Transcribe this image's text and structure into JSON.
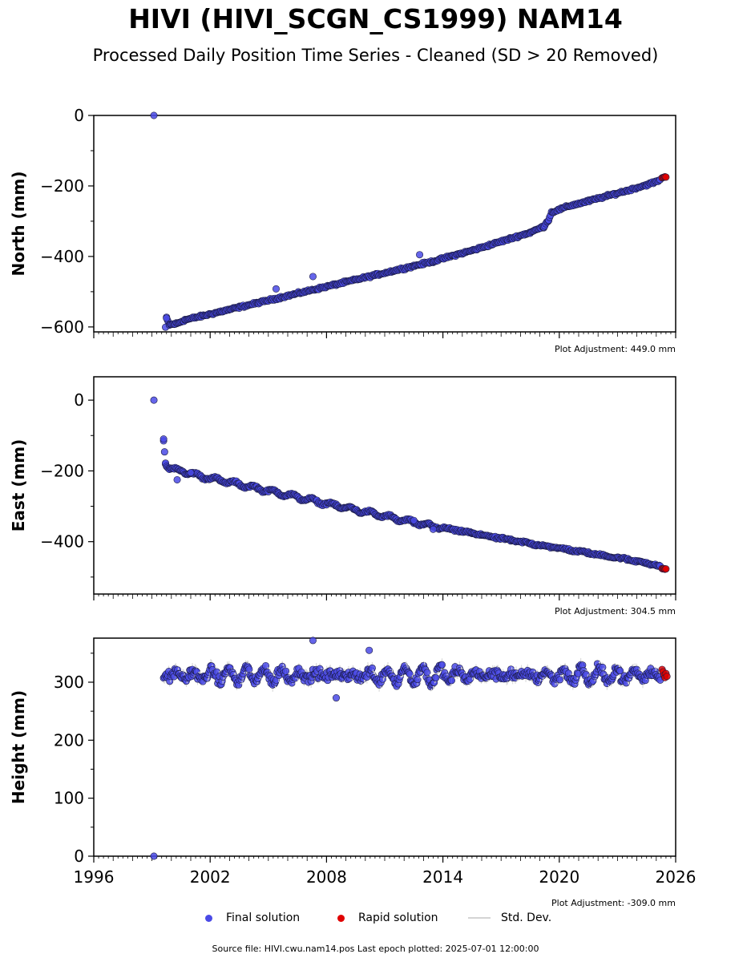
{
  "figure": {
    "title": "HIVI (HIVI_SCGN_CS1999) NAM14",
    "subtitle": "Processed Daily Position Time Series - Cleaned (SD > 20 Removed)",
    "footer": "Source file: HIVI.cwu.nam14.pos  Last epoch plotted: 2025-07-01 12:00:00"
  },
  "legend": {
    "final_label": "Final solution",
    "rapid_label": "Rapid solution",
    "std_label": "Std. Dev.",
    "final_color": "#4a4ae6",
    "rapid_color": "#e00000",
    "std_color": "#d4d4d4"
  },
  "chart_data": [
    {
      "type": "scatter",
      "ylabel": "North (mm)",
      "xlim": [
        1996,
        2026
      ],
      "ylim": [
        -614,
        0
      ],
      "yticks": [
        0,
        -200,
        -400,
        -600
      ],
      "xticks": [
        1996,
        2002,
        2008,
        2014,
        2020,
        2026
      ],
      "show_xticklabels": false,
      "adjustment_label": "Plot Adjustment: 449.0 mm",
      "series": [
        {
          "role": "final",
          "x": [
            1999.1,
            1999.7,
            1999.75,
            1999.9,
            2000.3,
            2000.7,
            2001.5,
            2002.5,
            2003.5,
            2004.5,
            2005.5,
            2006.5,
            2007.5,
            2008.5,
            2009.5,
            2010.5,
            2011.5,
            2012.5,
            2013.5,
            2014.5,
            2015.5,
            2016.5,
            2017.5,
            2018.5,
            2019.2,
            2019.45,
            2019.6,
            2020.5,
            2021.5,
            2022.5,
            2023.5,
            2024.5,
            2025.2
          ],
          "y": [
            0,
            -601,
            -575,
            -594,
            -590,
            -580,
            -570,
            -557,
            -544,
            -531,
            -518,
            -505,
            -492,
            -479,
            -466,
            -453,
            -440,
            -427,
            -414,
            -398,
            -383,
            -366,
            -349,
            -332,
            -315,
            -296,
            -275,
            -257,
            -243,
            -228,
            -213,
            -197,
            -184
          ],
          "outliers_x": [
            1999.75,
            2005.4,
            2007.3,
            2012.8
          ],
          "outliers_y": [
            -575,
            -492,
            -457,
            -395
          ]
        },
        {
          "role": "rapid",
          "x": [
            2025.3,
            2025.35,
            2025.4,
            2025.45,
            2025.5
          ],
          "y": [
            -177,
            -176,
            -175,
            -174,
            -175
          ]
        }
      ]
    },
    {
      "type": "scatter",
      "ylabel": "East (mm)",
      "xlim": [
        1996,
        2026
      ],
      "ylim": [
        -548,
        66
      ],
      "yticks": [
        0,
        -200,
        -400
      ],
      "xticks": [
        1996,
        2002,
        2008,
        2014,
        2020,
        2026
      ],
      "show_xticklabels": false,
      "adjustment_label": "Plot Adjustment: 304.5 mm",
      "series": [
        {
          "role": "final",
          "x": [
            1999.1,
            1999.6,
            1999.7,
            1999.9,
            2000.5,
            2001.5,
            2002.5,
            2003.5,
            2004.5,
            2005.5,
            2006.5,
            2007.5,
            2008.5,
            2009.5,
            2010.5,
            2011.5,
            2012.5,
            2013.5,
            2014.5,
            2015.5,
            2016.5,
            2017.5,
            2018.5,
            2019.5,
            2020.5,
            2021.5,
            2022.5,
            2023.5,
            2024.5,
            2025.2
          ],
          "y": [
            0,
            -110,
            -176,
            -192,
            -200,
            -215,
            -226,
            -238,
            -250,
            -262,
            -274,
            -286,
            -298,
            -310,
            -322,
            -334,
            -346,
            -356,
            -366,
            -376,
            -386,
            -396,
            -405,
            -414,
            -423,
            -432,
            -441,
            -450,
            -460,
            -470
          ],
          "outliers_x": [
            1999.6,
            2000.3,
            2001.0,
            2012.5,
            2013.5
          ],
          "outliers_y": [
            -110,
            -225,
            -205,
            -340,
            -365
          ]
        },
        {
          "role": "rapid",
          "x": [
            2025.3,
            2025.35,
            2025.4,
            2025.45,
            2025.5
          ],
          "y": [
            -476,
            -477,
            -476,
            -478,
            -477
          ]
        }
      ]
    },
    {
      "type": "scatter",
      "ylabel": "Height (mm)",
      "xlim": [
        1996,
        2026
      ],
      "ylim": [
        0,
        376
      ],
      "yticks": [
        0,
        100,
        200,
        300
      ],
      "xticks": [
        1996,
        2002,
        2008,
        2014,
        2020,
        2026
      ],
      "show_xticklabels": true,
      "adjustment_label": "Plot Adjustment: -309.0 mm",
      "series": [
        {
          "role": "final",
          "mean": 312,
          "annual_amplitude": 14,
          "x_range": [
            1999.6,
            2025.25
          ],
          "x": [
            1999.1,
            2007.3,
            2010.2,
            2008.5
          ],
          "y": [
            0,
            372,
            355,
            273
          ]
        },
        {
          "role": "rapid",
          "x": [
            2025.3,
            2025.35,
            2025.4,
            2025.45,
            2025.5,
            2025.55
          ],
          "y": [
            322,
            318,
            312,
            308,
            315,
            310
          ]
        }
      ]
    }
  ]
}
